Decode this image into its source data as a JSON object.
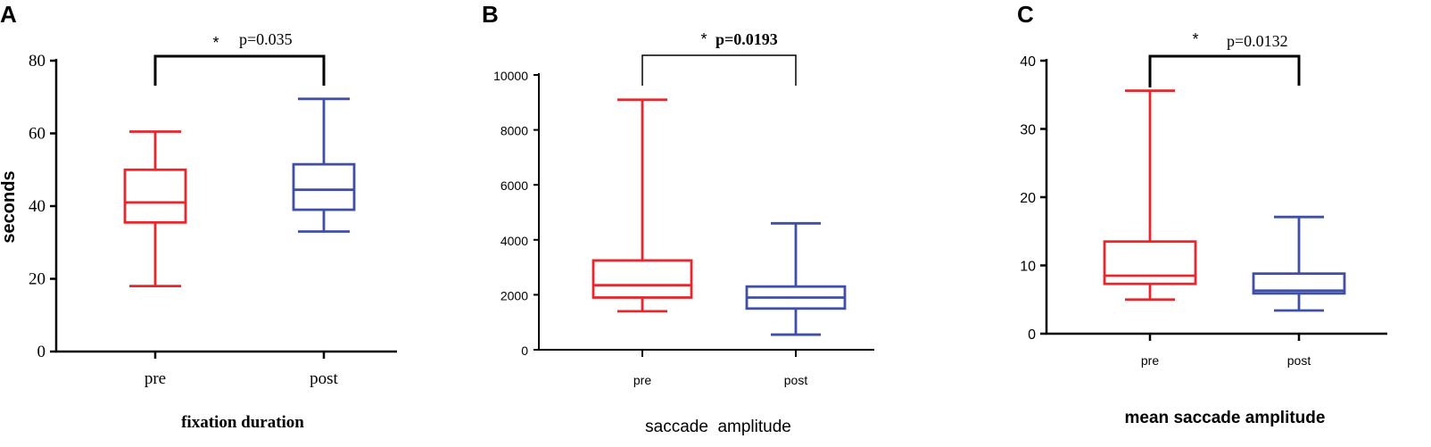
{
  "colors": {
    "pre": "#e8262b",
    "post": "#3f4fa5",
    "axis": "#000000"
  },
  "chart_data": [
    {
      "type": "box",
      "panel": "A",
      "xlabel": "fixation duration",
      "ylabel": "seconds",
      "categories": [
        "pre",
        "post"
      ],
      "ylim": [
        0,
        80
      ],
      "yticks": [
        "0",
        "20",
        "40",
        "60",
        "80"
      ],
      "boxes": [
        {
          "name": "pre",
          "min": 18,
          "q1": 35.5,
          "median": 41,
          "q3": 50,
          "max": 60.5
        },
        {
          "name": "post",
          "min": 33,
          "q1": 39,
          "median": 44.5,
          "q3": 51.5,
          "max": 69.5
        }
      ],
      "significance": {
        "star": "*",
        "p": "p=0.035"
      }
    },
    {
      "type": "box",
      "panel": "B",
      "xlabel": "saccade  amplitude",
      "ylabel": "",
      "categories": [
        "pre",
        "post"
      ],
      "ylim": [
        0,
        10000
      ],
      "yticks": [
        "0",
        "2000",
        "4000",
        "6000",
        "8000",
        "10000"
      ],
      "boxes": [
        {
          "name": "pre",
          "min": 1400,
          "q1": 1900,
          "median": 2350,
          "q3": 3250,
          "max": 9100
        },
        {
          "name": "post",
          "min": 550,
          "q1": 1500,
          "median": 1900,
          "q3": 2300,
          "max": 4600
        }
      ],
      "significance": {
        "star": "*",
        "p": "p=0.0193"
      }
    },
    {
      "type": "box",
      "panel": "C",
      "xlabel": "mean saccade amplitude",
      "ylabel": "",
      "categories": [
        "pre",
        "post"
      ],
      "ylim": [
        0,
        40
      ],
      "yticks": [
        "0",
        "10",
        "20",
        "30",
        "40"
      ],
      "boxes": [
        {
          "name": "pre",
          "min": 5,
          "q1": 7.3,
          "median": 8.5,
          "q3": 13.5,
          "max": 35.6
        },
        {
          "name": "post",
          "min": 3.4,
          "q1": 5.9,
          "median": 6.3,
          "q3": 8.8,
          "max": 17.1
        }
      ],
      "significance": {
        "star": "*",
        "p": "p=0.0132"
      }
    }
  ]
}
